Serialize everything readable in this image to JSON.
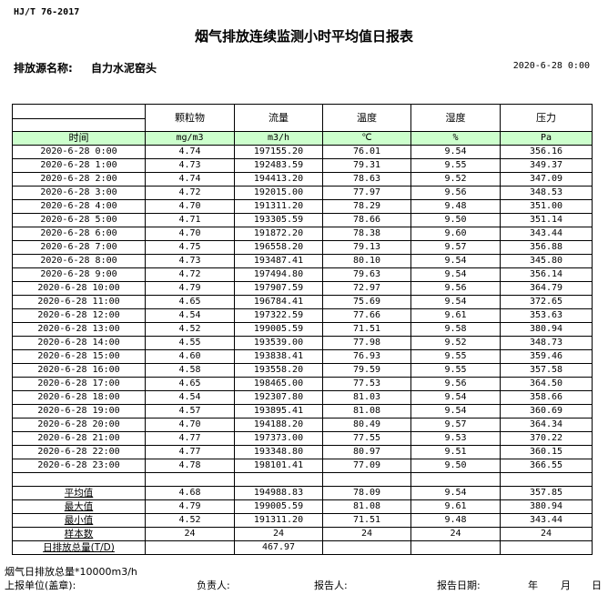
{
  "standard": "HJ/T  76-2017",
  "title": "烟气排放连续监测小时平均值日报表",
  "source_label": "排放源名称:",
  "source_name": "自力水泥窑头",
  "report_datetime": "2020-6-28 0:00",
  "columns": [
    "颗粒物",
    "流量",
    "温度",
    "湿度",
    "压力"
  ],
  "units": {
    "time": "时间",
    "values": [
      "mg/m3",
      "m3/h",
      "℃",
      "%",
      "Pa"
    ]
  },
  "rows": [
    [
      "2020-6-28 0:00",
      "4.74",
      "197155.20",
      "76.01",
      "9.54",
      "356.16"
    ],
    [
      "2020-6-28 1:00",
      "4.73",
      "192483.59",
      "79.31",
      "9.55",
      "349.37"
    ],
    [
      "2020-6-28 2:00",
      "4.74",
      "194413.20",
      "78.63",
      "9.52",
      "347.09"
    ],
    [
      "2020-6-28 3:00",
      "4.72",
      "192015.00",
      "77.97",
      "9.56",
      "348.53"
    ],
    [
      "2020-6-28 4:00",
      "4.70",
      "191311.20",
      "78.29",
      "9.48",
      "351.00"
    ],
    [
      "2020-6-28 5:00",
      "4.71",
      "193305.59",
      "78.66",
      "9.50",
      "351.14"
    ],
    [
      "2020-6-28 6:00",
      "4.70",
      "191872.20",
      "78.38",
      "9.60",
      "343.44"
    ],
    [
      "2020-6-28 7:00",
      "4.75",
      "196558.20",
      "79.13",
      "9.57",
      "356.88"
    ],
    [
      "2020-6-28 8:00",
      "4.73",
      "193487.41",
      "80.10",
      "9.54",
      "345.80"
    ],
    [
      "2020-6-28 9:00",
      "4.72",
      "197494.80",
      "79.63",
      "9.54",
      "356.14"
    ],
    [
      "2020-6-28 10:00",
      "4.79",
      "197907.59",
      "72.97",
      "9.56",
      "364.79"
    ],
    [
      "2020-6-28 11:00",
      "4.65",
      "196784.41",
      "75.69",
      "9.54",
      "372.65"
    ],
    [
      "2020-6-28 12:00",
      "4.54",
      "197322.59",
      "77.66",
      "9.61",
      "353.63"
    ],
    [
      "2020-6-28 13:00",
      "4.52",
      "199005.59",
      "71.51",
      "9.58",
      "380.94"
    ],
    [
      "2020-6-28 14:00",
      "4.55",
      "193539.00",
      "77.98",
      "9.52",
      "348.73"
    ],
    [
      "2020-6-28 15:00",
      "4.60",
      "193838.41",
      "76.93",
      "9.55",
      "359.46"
    ],
    [
      "2020-6-28 16:00",
      "4.58",
      "193558.20",
      "79.59",
      "9.55",
      "357.58"
    ],
    [
      "2020-6-28 17:00",
      "4.65",
      "198465.00",
      "77.53",
      "9.56",
      "364.50"
    ],
    [
      "2020-6-28 18:00",
      "4.54",
      "192307.80",
      "81.03",
      "9.54",
      "358.66"
    ],
    [
      "2020-6-28 19:00",
      "4.57",
      "193895.41",
      "81.08",
      "9.54",
      "360.69"
    ],
    [
      "2020-6-28 20:00",
      "4.70",
      "194188.20",
      "80.49",
      "9.57",
      "364.34"
    ],
    [
      "2020-6-28 21:00",
      "4.77",
      "197373.00",
      "77.55",
      "9.53",
      "370.22"
    ],
    [
      "2020-6-28 22:00",
      "4.77",
      "193348.80",
      "80.97",
      "9.51",
      "360.15"
    ],
    [
      "2020-6-28 23:00",
      "4.78",
      "198101.41",
      "77.09",
      "9.50",
      "366.55"
    ]
  ],
  "summary": [
    [
      "平均值",
      "4.68",
      "194988.83",
      "78.09",
      "9.54",
      "357.85"
    ],
    [
      "最大值",
      "4.79",
      "199005.59",
      "81.08",
      "9.61",
      "380.94"
    ],
    [
      "最小值",
      "4.52",
      "191311.20",
      "71.51",
      "9.48",
      "343.44"
    ],
    [
      "样本数",
      "24",
      "24",
      "24",
      "24",
      "24"
    ]
  ],
  "daily_total": {
    "label": "日排放总量(T/D)",
    "value": "467.97"
  },
  "footer": {
    "note": "烟气日排放总量*10000m3/h",
    "unit_label": "上报单位(盖章):",
    "manager": "负责人:",
    "reporter": "报告人:",
    "report_date": "报告日期:",
    "year": "年",
    "month": "月",
    "day": "日"
  },
  "colors": {
    "unit_row_bg": "#ccffcc"
  }
}
